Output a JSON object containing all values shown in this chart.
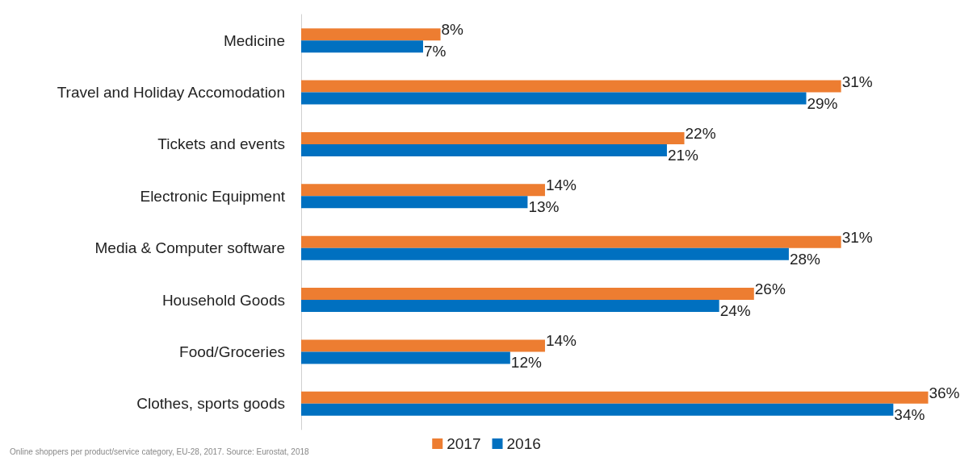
{
  "chart_data": {
    "type": "bar",
    "orientation": "horizontal",
    "categories": [
      "Medicine",
      "Travel and Holiday Accomodation",
      "Tickets and events",
      "Electronic Equipment",
      "Media & Computer software",
      "Household Goods",
      "Food/Groceries",
      "Clothes, sports goods"
    ],
    "series": [
      {
        "name": "2017",
        "color": "#ed7d31",
        "values": [
          8,
          31,
          22,
          14,
          31,
          26,
          14,
          36
        ],
        "value_labels": [
          "8%",
          "31%",
          "22%",
          "14%",
          "31%",
          "26%",
          "14%",
          "36%"
        ]
      },
      {
        "name": "2016",
        "color": "#0070c0",
        "values": [
          7,
          29,
          21,
          13,
          28,
          24,
          12,
          34
        ],
        "value_labels": [
          "7%",
          "29%",
          "21%",
          "13%",
          "28%",
          "24%",
          "12%",
          "34%"
        ]
      }
    ],
    "legend": "bottom",
    "annotations": [
      "Online shoppers per product/service category, EU-28, 2017. Source: Eurostat, 2018"
    ]
  }
}
